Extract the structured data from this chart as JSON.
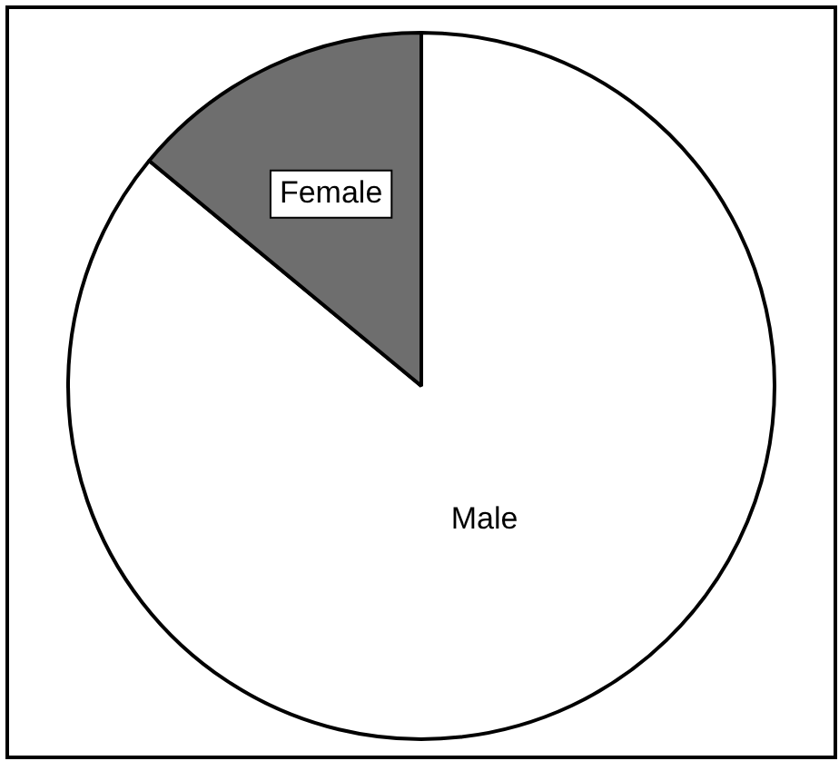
{
  "chart_data": {
    "type": "pie",
    "categories": [
      "Male",
      "Female"
    ],
    "values": [
      86,
      14
    ],
    "colors": [
      "#ffffff",
      "#6e6e6e"
    ],
    "legend": false
  }
}
